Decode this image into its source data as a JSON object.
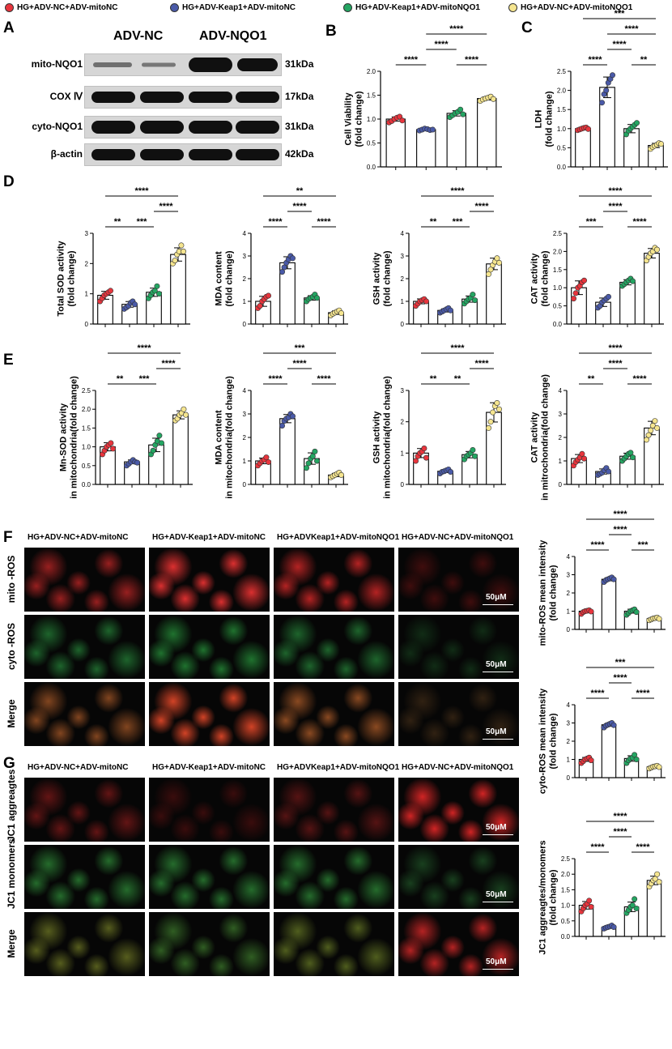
{
  "legend": [
    {
      "label": "HG+ADV-NC+ADV-mitoNC",
      "color": "#e8353d"
    },
    {
      "label": "HG+ADV-Keap1+ADV-mitoNC",
      "color": "#4a5aa8"
    },
    {
      "label": "HG+ADV-Keap1+ADV-mitoNQO1",
      "color": "#24a562"
    },
    {
      "label": "HG+ADV-NC+ADV-mitoNQO1",
      "color": "#f5e58f"
    }
  ],
  "panel_letters": [
    "A",
    "B",
    "C",
    "D",
    "E",
    "F",
    "G"
  ],
  "blot": {
    "headers": [
      "ADV-NC",
      "ADV-NQO1"
    ],
    "rows": [
      {
        "label": "mito-NQO1",
        "kda": "31kDa"
      },
      {
        "label": "COX Ⅳ",
        "kda": "17kDa"
      },
      {
        "label": "cyto-NQO1",
        "kda": "31kDa"
      },
      {
        "label": "β-actin",
        "kda": "42kDa"
      }
    ]
  },
  "micro": {
    "f_columns": [
      "HG+ADV-NC+ADV-mitoNC",
      "HG+ADV-Keap1+ADV-mitoNC",
      "HG+ADVKeap1+ADV-mitoNQO1",
      "HG+ADV-NC+ADV-mitoNQO1"
    ],
    "f_rows": [
      "mito -ROS",
      "cyto -ROS",
      "Merge"
    ],
    "g_columns": [
      "HG+ADV-NC+ADV-mitoNC",
      "HG+ADV-Keap1+ADV-mitoNC",
      "HG+ADVKeap1+ADV-mitoNQO1",
      "HG+ADV-NC+ADV-mitoNQO1"
    ],
    "g_rows": [
      "JC1 aggreagtes",
      "JC1 monomers",
      "Merge"
    ],
    "scale": "50μM"
  },
  "chart_data": [
    {
      "id": "B",
      "type": "scatter",
      "ylabel": [
        "Cell Viability",
        "(fold change)"
      ],
      "ylim": [
        0,
        2
      ],
      "ticks": [
        "0.0",
        "0.5",
        "1.0",
        "1.5",
        "2.0"
      ],
      "means": [
        1.0,
        0.78,
        1.12,
        1.43
      ],
      "points": [
        [
          0.93,
          0.96,
          1.0,
          1.03,
          1.05,
          0.97
        ],
        [
          0.76,
          0.78,
          0.8,
          0.79,
          0.77,
          0.78
        ],
        [
          1.04,
          1.08,
          1.12,
          1.15,
          1.2,
          1.1
        ],
        [
          1.38,
          1.41,
          1.43,
          1.45,
          1.47,
          1.42
        ]
      ],
      "brackets": [
        {
          "a": 0,
          "b": 1,
          "label": "****",
          "level": 0
        },
        {
          "a": 2,
          "b": 3,
          "label": "****",
          "level": 0
        },
        {
          "a": 1,
          "b": 2,
          "label": "****",
          "level": 1
        },
        {
          "a": 1,
          "b": 3,
          "label": "****",
          "level": 2
        }
      ]
    },
    {
      "id": "C",
      "type": "scatter",
      "ylabel": [
        "LDH",
        "(fold change)"
      ],
      "ylim": [
        0,
        2.5
      ],
      "ticks": [
        "0.0",
        "0.5",
        "1.0",
        "1.5",
        "2.0",
        "2.5"
      ],
      "means": [
        1.0,
        2.08,
        1.0,
        0.56
      ],
      "points": [
        [
          0.96,
          0.98,
          1.0,
          1.02,
          1.03,
          0.99
        ],
        [
          1.68,
          1.9,
          2.0,
          2.2,
          2.3,
          2.4
        ],
        [
          0.85,
          0.95,
          1.0,
          1.05,
          1.1,
          1.15
        ],
        [
          0.47,
          0.52,
          0.55,
          0.58,
          0.62,
          0.6
        ]
      ],
      "brackets": [
        {
          "a": 0,
          "b": 1,
          "label": "****",
          "level": 0
        },
        {
          "a": 2,
          "b": 3,
          "label": "**",
          "level": 0
        },
        {
          "a": 1,
          "b": 2,
          "label": "****",
          "level": 1
        },
        {
          "a": 1,
          "b": 3,
          "label": "****",
          "level": 2
        },
        {
          "a": 0,
          "b": 3,
          "label": "***",
          "level": 3
        }
      ]
    },
    {
      "id": "D1",
      "type": "scatter",
      "ylabel": [
        "Total SOD activity",
        "(fold change)"
      ],
      "ylim": [
        0,
        3
      ],
      "ticks": [
        "0",
        "1",
        "2",
        "3"
      ],
      "means": [
        0.95,
        0.65,
        1.05,
        2.3
      ],
      "points": [
        [
          0.75,
          0.85,
          0.95,
          1.0,
          1.05,
          1.1
        ],
        [
          0.5,
          0.55,
          0.6,
          0.7,
          0.75,
          0.65
        ],
        [
          0.85,
          0.95,
          1.05,
          1.1,
          1.25,
          1.0
        ],
        [
          2.0,
          2.1,
          2.3,
          2.4,
          2.6,
          2.4
        ]
      ],
      "brackets": [
        {
          "a": 0,
          "b": 1,
          "label": "**",
          "level": 0
        },
        {
          "a": 1,
          "b": 2,
          "label": "***",
          "level": 0
        },
        {
          "a": 2,
          "b": 3,
          "label": "****",
          "level": 1
        },
        {
          "a": 0,
          "b": 3,
          "label": "****",
          "level": 2
        }
      ]
    },
    {
      "id": "D2",
      "type": "scatter",
      "ylabel": [
        "MDA content",
        "(fold change)"
      ],
      "ylim": [
        0,
        4
      ],
      "ticks": [
        "0",
        "1",
        "2",
        "3",
        "4"
      ],
      "means": [
        1.0,
        2.7,
        1.15,
        0.5
      ],
      "points": [
        [
          0.7,
          0.8,
          1.0,
          1.1,
          1.2,
          1.25
        ],
        [
          2.3,
          2.5,
          2.7,
          2.85,
          3.0,
          2.9
        ],
        [
          1.0,
          1.1,
          1.15,
          1.2,
          1.3,
          1.15
        ],
        [
          0.38,
          0.45,
          0.5,
          0.55,
          0.6,
          0.48
        ]
      ],
      "brackets": [
        {
          "a": 0,
          "b": 1,
          "label": "****",
          "level": 0
        },
        {
          "a": 2,
          "b": 3,
          "label": "****",
          "level": 0
        },
        {
          "a": 1,
          "b": 2,
          "label": "****",
          "level": 1
        },
        {
          "a": 0,
          "b": 3,
          "label": "**",
          "level": 2
        }
      ]
    },
    {
      "id": "D3",
      "type": "scatter",
      "ylabel": [
        "GSH activity",
        "(fold change)"
      ],
      "ylim": [
        0,
        4
      ],
      "ticks": [
        "0",
        "1",
        "2",
        "3",
        "4"
      ],
      "means": [
        1.0,
        0.6,
        1.1,
        2.65
      ],
      "points": [
        [
          0.8,
          0.9,
          1.0,
          1.05,
          1.1,
          1.0
        ],
        [
          0.5,
          0.55,
          0.6,
          0.65,
          0.7,
          0.6
        ],
        [
          0.9,
          1.0,
          1.1,
          1.15,
          1.3,
          1.05
        ],
        [
          2.2,
          2.4,
          2.6,
          2.75,
          2.9,
          2.7
        ]
      ],
      "brackets": [
        {
          "a": 0,
          "b": 1,
          "label": "**",
          "level": 0
        },
        {
          "a": 1,
          "b": 2,
          "label": "***",
          "level": 0
        },
        {
          "a": 2,
          "b": 3,
          "label": "****",
          "level": 1
        },
        {
          "a": 0,
          "b": 3,
          "label": "****",
          "level": 2
        }
      ]
    },
    {
      "id": "D4",
      "type": "scatter",
      "ylabel": [
        "CAT activity",
        "(fold change)"
      ],
      "ylim": [
        0,
        2.5
      ],
      "ticks": [
        "0.0",
        "0.5",
        "1.0",
        "1.5",
        "2.0",
        "2.5"
      ],
      "means": [
        1.0,
        0.6,
        1.15,
        1.95
      ],
      "points": [
        [
          0.7,
          0.85,
          1.0,
          1.05,
          1.15,
          1.2
        ],
        [
          0.45,
          0.5,
          0.6,
          0.65,
          0.7,
          0.75
        ],
        [
          1.05,
          1.1,
          1.15,
          1.2,
          1.25,
          1.18
        ],
        [
          1.75,
          1.85,
          1.95,
          2.0,
          2.1,
          2.05
        ]
      ],
      "brackets": [
        {
          "a": 0,
          "b": 1,
          "label": "***",
          "level": 0
        },
        {
          "a": 2,
          "b": 3,
          "label": "****",
          "level": 0
        },
        {
          "a": 1,
          "b": 2,
          "label": "****",
          "level": 1
        },
        {
          "a": 0,
          "b": 3,
          "label": "****",
          "level": 2
        }
      ]
    },
    {
      "id": "E1",
      "type": "scatter",
      "ylabel": [
        "Mn-SOD activity",
        "in mitochondria(fold change)"
      ],
      "ylim": [
        0,
        2.5
      ],
      "ticks": [
        "0.0",
        "0.5",
        "1.0",
        "1.5",
        "2.0",
        "2.5"
      ],
      "means": [
        1.0,
        0.6,
        1.05,
        1.85
      ],
      "points": [
        [
          0.8,
          0.9,
          1.0,
          1.05,
          1.1,
          0.95
        ],
        [
          0.5,
          0.55,
          0.6,
          0.65,
          0.6,
          0.58
        ],
        [
          0.8,
          0.9,
          1.05,
          1.15,
          1.3,
          1.1
        ],
        [
          1.7,
          1.75,
          1.85,
          1.9,
          2.0,
          1.85
        ]
      ],
      "brackets": [
        {
          "a": 0,
          "b": 1,
          "label": "**",
          "level": 0
        },
        {
          "a": 1,
          "b": 2,
          "label": "***",
          "level": 0
        },
        {
          "a": 2,
          "b": 3,
          "label": "****",
          "level": 1
        },
        {
          "a": 0,
          "b": 3,
          "label": "****",
          "level": 2
        }
      ]
    },
    {
      "id": "E2",
      "type": "scatter",
      "ylabel": [
        "MDA content",
        "in mitochondria(fold change)"
      ],
      "ylim": [
        0,
        4
      ],
      "ticks": [
        "0",
        "1",
        "2",
        "3",
        "4"
      ],
      "means": [
        1.0,
        2.8,
        1.1,
        0.4
      ],
      "points": [
        [
          0.8,
          0.9,
          1.0,
          1.05,
          1.15,
          0.95
        ],
        [
          2.5,
          2.7,
          2.8,
          2.85,
          3.0,
          2.9
        ],
        [
          0.7,
          0.9,
          1.1,
          1.2,
          1.4,
          1.0
        ],
        [
          0.3,
          0.35,
          0.4,
          0.45,
          0.5,
          0.4
        ]
      ],
      "brackets": [
        {
          "a": 0,
          "b": 1,
          "label": "****",
          "level": 0
        },
        {
          "a": 2,
          "b": 3,
          "label": "****",
          "level": 0
        },
        {
          "a": 1,
          "b": 2,
          "label": "****",
          "level": 1
        },
        {
          "a": 0,
          "b": 3,
          "label": "***",
          "level": 2
        }
      ]
    },
    {
      "id": "E3",
      "type": "scatter",
      "ylabel": [
        "GSH activity",
        "in mitochondria(fold change)"
      ],
      "ylim": [
        0,
        3
      ],
      "ticks": [
        "0",
        "1",
        "2",
        "3"
      ],
      "means": [
        1.0,
        0.42,
        0.95,
        2.3
      ],
      "points": [
        [
          0.75,
          0.9,
          1.0,
          1.05,
          1.15,
          0.85
        ],
        [
          0.35,
          0.4,
          0.42,
          0.45,
          0.48,
          0.4
        ],
        [
          0.8,
          0.9,
          0.95,
          1.0,
          1.1,
          0.9
        ],
        [
          1.8,
          2.0,
          2.3,
          2.5,
          2.6,
          2.4
        ]
      ],
      "brackets": [
        {
          "a": 0,
          "b": 1,
          "label": "**",
          "level": 0
        },
        {
          "a": 1,
          "b": 2,
          "label": "**",
          "level": 0
        },
        {
          "a": 2,
          "b": 3,
          "label": "****",
          "level": 1
        },
        {
          "a": 0,
          "b": 3,
          "label": "****",
          "level": 2
        }
      ]
    },
    {
      "id": "E4",
      "type": "scatter",
      "ylabel": [
        "CAT activity",
        "in mitrochondria(fold change)"
      ],
      "ylim": [
        0,
        4
      ],
      "ticks": [
        "0",
        "1",
        "2",
        "3",
        "4"
      ],
      "means": [
        1.1,
        0.55,
        1.2,
        2.4
      ],
      "points": [
        [
          0.8,
          0.95,
          1.05,
          1.15,
          1.3,
          1.1
        ],
        [
          0.4,
          0.45,
          0.5,
          0.6,
          0.7,
          0.55
        ],
        [
          1.0,
          1.1,
          1.2,
          1.3,
          1.35,
          1.15
        ],
        [
          1.9,
          2.1,
          2.3,
          2.5,
          2.7,
          2.4
        ]
      ],
      "brackets": [
        {
          "a": 0,
          "b": 1,
          "label": "**",
          "level": 0
        },
        {
          "a": 2,
          "b": 3,
          "label": "****",
          "level": 0
        },
        {
          "a": 1,
          "b": 2,
          "label": "****",
          "level": 1
        },
        {
          "a": 0,
          "b": 3,
          "label": "****",
          "level": 2
        }
      ]
    },
    {
      "id": "F1",
      "type": "scatter",
      "ylabel": [
        "mito-ROS mean intensity",
        "(fold change)"
      ],
      "ylim": [
        0,
        4
      ],
      "ticks": [
        "0",
        "1",
        "2",
        "3",
        "4"
      ],
      "means": [
        1.0,
        2.75,
        1.0,
        0.6
      ],
      "points": [
        [
          0.85,
          0.95,
          1.0,
          1.02,
          1.05,
          0.98
        ],
        [
          2.6,
          2.7,
          2.75,
          2.8,
          2.85,
          2.75
        ],
        [
          0.8,
          0.9,
          1.0,
          1.05,
          1.1,
          0.95
        ],
        [
          0.5,
          0.55,
          0.6,
          0.62,
          0.65,
          0.58
        ]
      ],
      "brackets": [
        {
          "a": 0,
          "b": 1,
          "label": "****",
          "level": 0
        },
        {
          "a": 2,
          "b": 3,
          "label": "***",
          "level": 0
        },
        {
          "a": 1,
          "b": 2,
          "label": "****",
          "level": 1
        },
        {
          "a": 0,
          "b": 3,
          "label": "****",
          "level": 2
        }
      ]
    },
    {
      "id": "F2",
      "type": "scatter",
      "ylabel": [
        "cyto-ROS mean intensity",
        "(fold change)"
      ],
      "ylim": [
        0,
        4
      ],
      "ticks": [
        "0",
        "1",
        "2",
        "3",
        "4"
      ],
      "means": [
        1.0,
        2.9,
        1.05,
        0.6
      ],
      "points": [
        [
          0.8,
          0.9,
          1.0,
          1.05,
          1.1,
          0.95
        ],
        [
          2.75,
          2.85,
          2.9,
          2.95,
          3.0,
          2.88
        ],
        [
          0.8,
          0.95,
          1.05,
          1.1,
          1.25,
          1.0
        ],
        [
          0.5,
          0.55,
          0.6,
          0.62,
          0.65,
          0.58
        ]
      ],
      "brackets": [
        {
          "a": 0,
          "b": 1,
          "label": "****",
          "level": 0
        },
        {
          "a": 2,
          "b": 3,
          "label": "****",
          "level": 0
        },
        {
          "a": 1,
          "b": 2,
          "label": "****",
          "level": 1
        },
        {
          "a": 0,
          "b": 3,
          "label": "***",
          "level": 2
        }
      ]
    },
    {
      "id": "G1",
      "type": "scatter",
      "ylabel": [
        "JC1 aggreagtes/monomers",
        "(fold change)"
      ],
      "ylim": [
        0,
        2.5
      ],
      "ticks": [
        "0.0",
        "0.5",
        "1.0",
        "1.5",
        "2.0",
        "2.5"
      ],
      "means": [
        1.0,
        0.3,
        0.95,
        1.8
      ],
      "points": [
        [
          0.8,
          0.9,
          1.0,
          1.05,
          1.15,
          0.95
        ],
        [
          0.25,
          0.28,
          0.3,
          0.32,
          0.35,
          0.3
        ],
        [
          0.75,
          0.85,
          0.95,
          1.0,
          1.2,
          0.9
        ],
        [
          1.6,
          1.7,
          1.8,
          1.85,
          2.0,
          1.75
        ]
      ],
      "brackets": [
        {
          "a": 0,
          "b": 1,
          "label": "****",
          "level": 0
        },
        {
          "a": 2,
          "b": 3,
          "label": "****",
          "level": 0
        },
        {
          "a": 1,
          "b": 2,
          "label": "****",
          "level": 1
        },
        {
          "a": 0,
          "b": 3,
          "label": "****",
          "level": 2
        }
      ]
    }
  ]
}
